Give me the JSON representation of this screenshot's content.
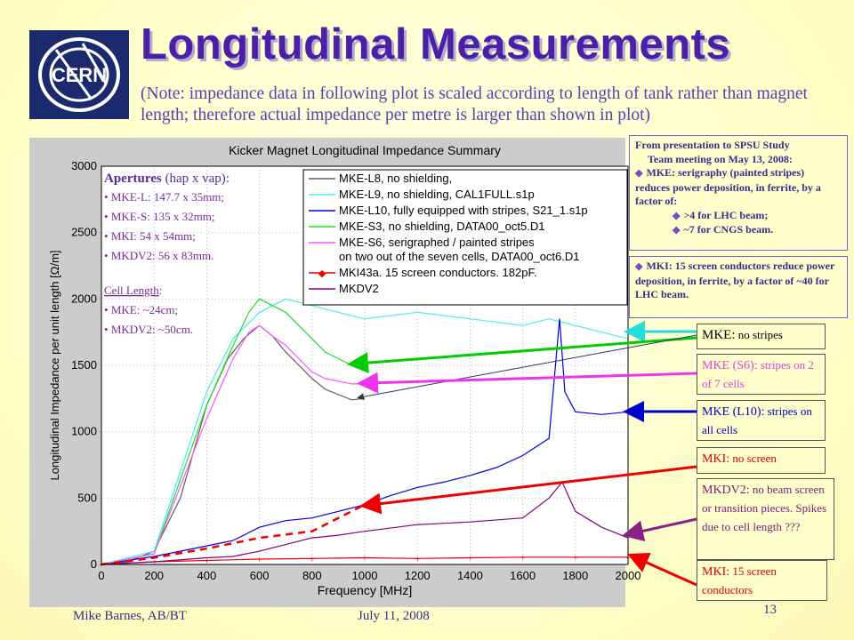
{
  "slide": {
    "title": "Longitudinal Measurements",
    "note": "(Note: impedance data in following plot is scaled according to length of tank rather than magnet length; therefore actual impedance per metre is larger than shown in plot)",
    "footer_left": "Mike Barnes, AB/BT",
    "footer_center": "July 11, 2008",
    "page_number": "13",
    "logo_text": "CERN"
  },
  "apertures": {
    "heading": "Apertures",
    "heading_suffix": " (hap x vap):",
    "items": [
      "MKE-L: 147.7 x 35mm;",
      "MKE-S: 135 x 32mm;",
      "MKI: 54 x 54mm;",
      "MKDV2: 56 x 83mm."
    ],
    "cell_heading": "Cell Length",
    "cell_suffix": ":",
    "cell_items": [
      "MKE: ~24cm;",
      "MKDV2: ~50cm."
    ]
  },
  "info_top": {
    "line1": "From presentation to SPSU Study",
    "line2": "Team meeting on May 13, 2008:",
    "bullet": "MKE: serigraphy (painted stripes) reduces power deposition, in ferrite, by a factor of:",
    "sub": [
      ">4 for LHC beam;",
      "~7 for CNGS beam."
    ]
  },
  "info_mid": {
    "bullet": "MKI: 15 screen conductors reduce power deposition, in ferrite, by a factor of ~40 for LHC beam."
  },
  "labels": [
    {
      "main": "MKE:",
      "rest": " no stripes",
      "color": "#000000"
    },
    {
      "main": "MKE (S6):",
      "rest": " stripes on 2 of 7 cells",
      "color": "#e040e0"
    },
    {
      "main": "MKE (L10):",
      "rest": " stripes on all cells",
      "color": "#0000cc"
    },
    {
      "main": "MKI:",
      "rest": " no screen",
      "color": "#dd0000"
    },
    {
      "main": "MKDV2:",
      "rest": " no beam screen or transition pieces. Spikes due to cell length ???",
      "color": "#7a1a7a"
    },
    {
      "main": "MKI:",
      "rest": " 15 screen conductors",
      "color": "#dd0000"
    }
  ],
  "colors": {
    "title": "#4b1fa6",
    "note": "#5a3fb5",
    "arrow_cyan": "#22dddd",
    "arrow_green": "#00cc00",
    "arrow_magenta": "#ee33ee",
    "arrow_blue": "#0000cc",
    "arrow_red": "#ee0000",
    "arrow_purple": "#882288"
  },
  "chart_data": {
    "type": "line",
    "title": "Kicker Magnet Longitudinal Impedance Summary",
    "xlabel": "Frequency [MHz]",
    "ylabel": "Longitudinal Impedance per unit length [Ω/m]",
    "xlim": [
      0,
      2000
    ],
    "ylim": [
      0,
      3000
    ],
    "xticks": [
      0,
      200,
      400,
      600,
      800,
      1000,
      1200,
      1400,
      1600,
      1800,
      2000
    ],
    "yticks": [
      0,
      500,
      1000,
      1500,
      2000,
      2500,
      3000
    ],
    "grid": true,
    "legend_position": "top-right",
    "series": [
      {
        "name": "MKE-L8, no shielding,",
        "color": "#606060",
        "x": [
          0,
          100,
          200,
          300,
          400,
          480,
          540,
          600,
          650,
          700,
          750,
          800,
          850,
          900,
          950,
          1000
        ],
        "y": [
          0,
          20,
          100,
          500,
          1200,
          1550,
          1700,
          1800,
          1720,
          1600,
          1500,
          1400,
          1320,
          1280,
          1240,
          1250
        ]
      },
      {
        "name": "MKE-L9, no shielding, CAL1FULL.s1p",
        "color": "#44eeee",
        "x": [
          0,
          200,
          400,
          500,
          600,
          700,
          800,
          900,
          1000,
          1200,
          1400,
          1600,
          1700,
          1800,
          1900,
          2000
        ],
        "y": [
          0,
          100,
          1300,
          1700,
          1900,
          2000,
          1950,
          1900,
          1850,
          1900,
          1850,
          1800,
          1850,
          1800,
          1750,
          1700
        ]
      },
      {
        "name": "MKE-L10, fully equipped with stripes, S21_1.s1p",
        "color": "#0000dd",
        "x": [
          0,
          100,
          200,
          300,
          400,
          500,
          600,
          700,
          800,
          900,
          1000,
          1100,
          1200,
          1300,
          1400,
          1500,
          1600,
          1700,
          1720,
          1740,
          1760,
          1800,
          1900,
          2000
        ],
        "y": [
          0,
          30,
          60,
          100,
          140,
          180,
          280,
          330,
          350,
          400,
          450,
          520,
          580,
          620,
          670,
          730,
          820,
          950,
          1400,
          1850,
          1300,
          1150,
          1130,
          1150
        ]
      },
      {
        "name": "MKE-S3, no shielding, DATA00_oct5.D1",
        "color": "#22dd22",
        "x": [
          0,
          200,
          400,
          500,
          560,
          600,
          650,
          700,
          750,
          800,
          850,
          900,
          950,
          1000
        ],
        "y": [
          0,
          80,
          1200,
          1650,
          1900,
          2000,
          1950,
          1900,
          1800,
          1700,
          1600,
          1550,
          1500,
          1500
        ]
      },
      {
        "name": "MKE-S6, serigraphed / painted stripes on two out of the seven cells, DATA00_oct6.D1",
        "color": "#ff55ff",
        "x": [
          0,
          200,
          400,
          500,
          560,
          600,
          650,
          700,
          750,
          800,
          850,
          900,
          950,
          1000
        ],
        "y": [
          0,
          80,
          1100,
          1550,
          1750,
          1800,
          1720,
          1650,
          1550,
          1450,
          1400,
          1380,
          1360,
          1360
        ]
      },
      {
        "name": "MKI43a. 15 screen conductors. 182pF.",
        "color": "#ee0000",
        "x": [
          0,
          200,
          400,
          600,
          800,
          1000,
          1200,
          1400,
          1600,
          1800,
          2000
        ],
        "y": [
          0,
          20,
          30,
          40,
          45,
          50,
          45,
          50,
          55,
          55,
          55
        ]
      },
      {
        "name": "MKDV2",
        "color": "#800080",
        "x": [
          0,
          200,
          400,
          500,
          600,
          700,
          800,
          900,
          1000,
          1200,
          1400,
          1600,
          1700,
          1750,
          1800,
          1900,
          2000
        ],
        "y": [
          0,
          20,
          50,
          60,
          100,
          150,
          200,
          220,
          250,
          300,
          320,
          350,
          500,
          620,
          400,
          280,
          200
        ]
      },
      {
        "name": "MKI (no screen)",
        "color": "#ee0000",
        "x": [
          0,
          200,
          400,
          600,
          800,
          900,
          1000
        ],
        "y": [
          0,
          50,
          120,
          200,
          250,
          350,
          450
        ]
      }
    ]
  }
}
